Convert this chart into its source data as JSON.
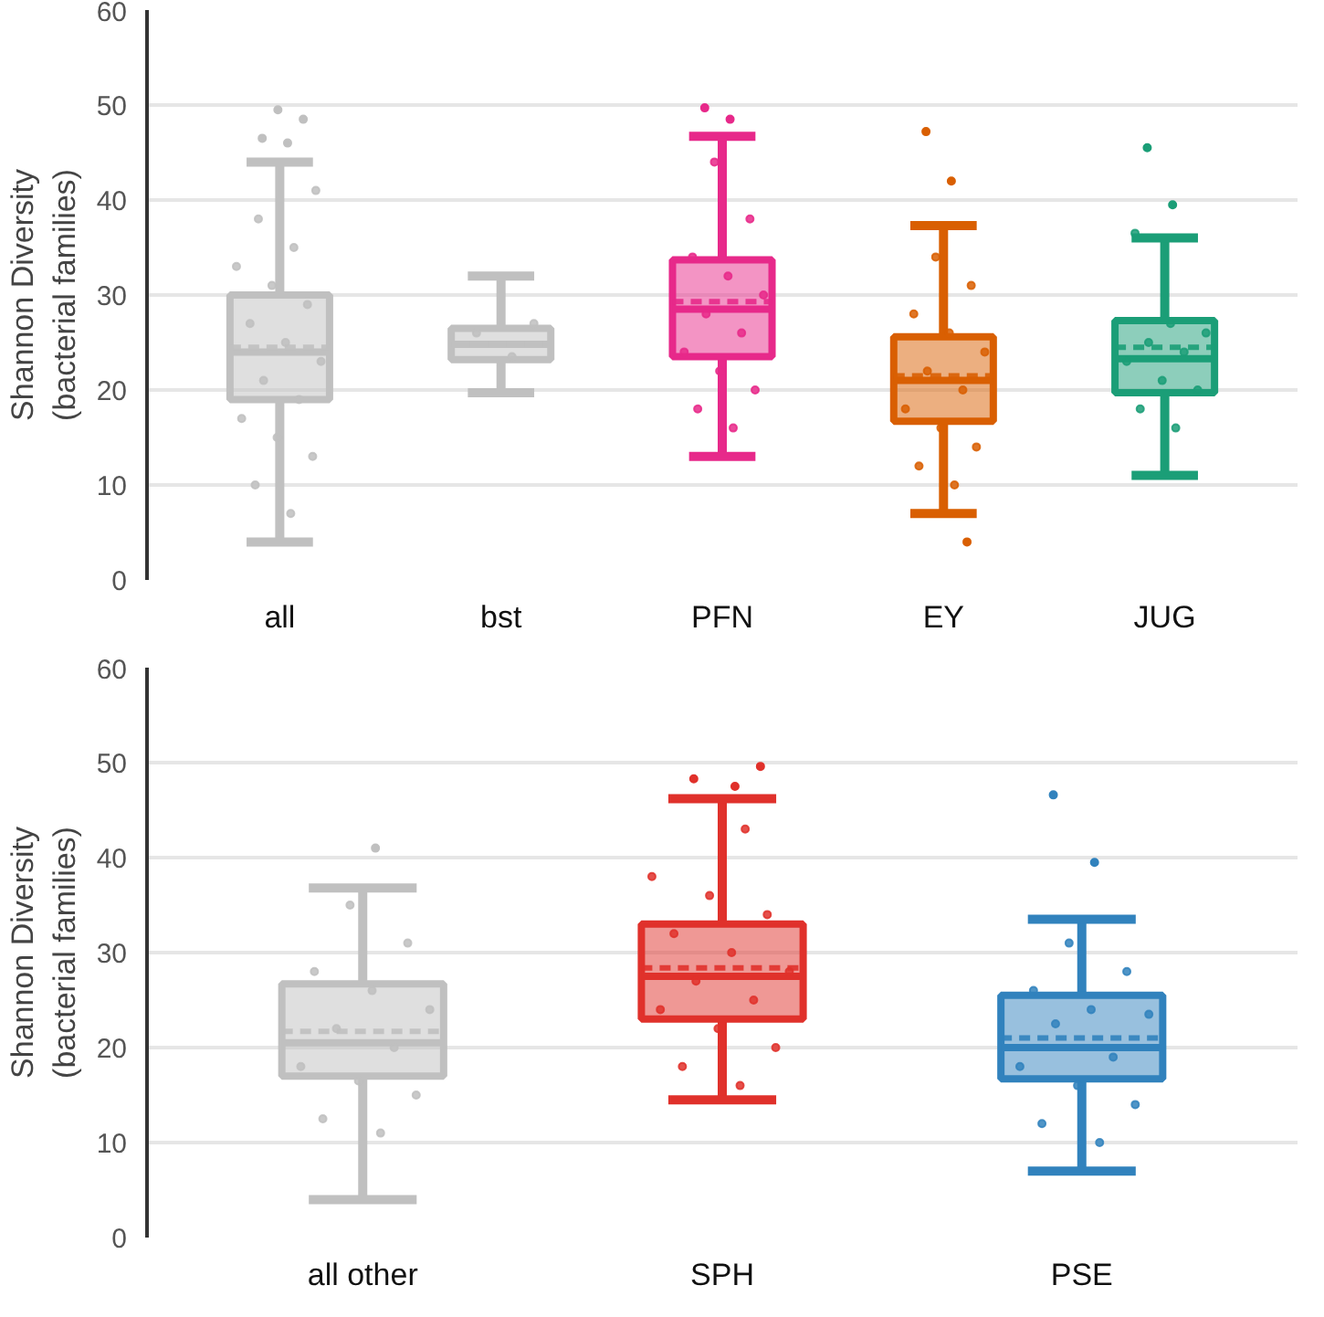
{
  "chart_data": [
    {
      "type": "box",
      "ylabel": "Shannon Diversity\n(bacterial families)",
      "categories": [
        "all",
        "bst",
        "PFN",
        "EY",
        "JUG"
      ],
      "ylim": [
        0,
        60
      ],
      "yticks": [
        0,
        10,
        20,
        30,
        40,
        50,
        60
      ],
      "grid": "y",
      "colors": [
        "#c0c0c0",
        "#c0c0c0",
        "#e7298a",
        "#d95f02",
        "#1b9e77"
      ],
      "boxes": [
        {
          "low": 4,
          "q1": 19,
          "median": 24,
          "q3": 30,
          "high": 44,
          "mean": 24.5,
          "outliers": [
            46,
            46.5,
            48.5,
            49.5
          ]
        },
        {
          "low": 19.7,
          "q1": 23.2,
          "median": 24.8,
          "q3": 26.5,
          "high": 32,
          "mean": 24.8
        },
        {
          "low": 13,
          "q1": 23.5,
          "median": 28.5,
          "q3": 33.7,
          "high": 46.7,
          "mean": 29.3,
          "outliers": [
            48.5,
            49.7
          ]
        },
        {
          "low": 7,
          "q1": 16.7,
          "median": 21,
          "q3": 25.6,
          "high": 37.3,
          "mean": 21.5,
          "outliers": [
            42,
            47.2,
            4
          ]
        },
        {
          "low": 11,
          "q1": 19.7,
          "median": 23.3,
          "q3": 27.3,
          "high": 36,
          "mean": 24.5,
          "outliers": [
            39.5,
            45.5
          ]
        }
      ],
      "series": [
        {
          "type": "scatter",
          "color": "#c0c0c0",
          "x": [
            "all",
            "all",
            "all",
            "all",
            "all",
            "all",
            "all",
            "all",
            "all",
            "all",
            "all",
            "all",
            "all",
            "all",
            "all",
            "all"
          ],
          "values": [
            7,
            10,
            13,
            15,
            17,
            19,
            21,
            23,
            25,
            27,
            29,
            31,
            33,
            35,
            38,
            41
          ]
        },
        {
          "type": "scatter",
          "color": "#c0c0c0",
          "x": [
            "bst",
            "bst",
            "bst"
          ],
          "values": [
            23.5,
            26,
            27
          ]
        },
        {
          "type": "scatter",
          "color": "#e7298a",
          "x": [
            "PFN",
            "PFN",
            "PFN",
            "PFN",
            "PFN",
            "PFN",
            "PFN",
            "PFN",
            "PFN",
            "PFN",
            "PFN",
            "PFN"
          ],
          "values": [
            16,
            18,
            20,
            22,
            24,
            26,
            28,
            30,
            32,
            34,
            38,
            44
          ]
        },
        {
          "type": "scatter",
          "color": "#d95f02",
          "x": [
            "EY",
            "EY",
            "EY",
            "EY",
            "EY",
            "EY",
            "EY",
            "EY",
            "EY",
            "EY",
            "EY",
            "EY"
          ],
          "values": [
            10,
            12,
            14,
            16,
            18,
            20,
            22,
            24,
            26,
            28,
            31,
            34
          ]
        },
        {
          "type": "scatter",
          "color": "#1b9e77",
          "x": [
            "JUG",
            "JUG",
            "JUG",
            "JUG",
            "JUG",
            "JUG",
            "JUG",
            "JUG",
            "JUG",
            "JUG"
          ],
          "values": [
            16,
            18,
            20,
            21,
            23,
            24,
            25,
            26,
            27,
            36.5
          ]
        }
      ]
    },
    {
      "type": "box",
      "ylabel": "Shannon Diversity\n(bacterial families)",
      "categories": [
        "all other",
        "SPH",
        "PSE"
      ],
      "ylim": [
        0,
        60
      ],
      "yticks": [
        0,
        10,
        20,
        30,
        40,
        50,
        60
      ],
      "grid": "y",
      "colors": [
        "#c0c0c0",
        "#e0312b",
        "#3182bd"
      ],
      "boxes": [
        {
          "low": 4,
          "q1": 17,
          "median": 20.5,
          "q3": 26.7,
          "high": 36.8,
          "mean": 21.7,
          "outliers": [
            41
          ]
        },
        {
          "low": 14.5,
          "q1": 23,
          "median": 27.5,
          "q3": 33,
          "high": 46.2,
          "mean": 28.4,
          "outliers": [
            47.5,
            48.3,
            49.6
          ]
        },
        {
          "low": 7,
          "q1": 16.7,
          "median": 20,
          "q3": 25.5,
          "high": 33.5,
          "mean": 21,
          "outliers": [
            39.5,
            46.6
          ]
        }
      ],
      "series": [
        {
          "type": "scatter",
          "color": "#c0c0c0",
          "x": [
            "all other",
            "all other",
            "all other",
            "all other",
            "all other",
            "all other",
            "all other",
            "all other",
            "all other",
            "all other",
            "all other",
            "all other"
          ],
          "values": [
            11,
            12.5,
            15,
            16.5,
            18,
            20,
            22,
            24,
            26,
            28,
            31,
            35
          ]
        },
        {
          "type": "scatter",
          "color": "#e0312b",
          "x": [
            "SPH",
            "SPH",
            "SPH",
            "SPH",
            "SPH",
            "SPH",
            "SPH",
            "SPH",
            "SPH",
            "SPH",
            "SPH",
            "SPH",
            "SPH",
            "SPH"
          ],
          "values": [
            16,
            18,
            20,
            22,
            24,
            25,
            27,
            28,
            30,
            32,
            34,
            36,
            38,
            43
          ]
        },
        {
          "type": "scatter",
          "color": "#3182bd",
          "x": [
            "PSE",
            "PSE",
            "PSE",
            "PSE",
            "PSE",
            "PSE",
            "PSE",
            "PSE",
            "PSE",
            "PSE",
            "PSE",
            "PSE"
          ],
          "values": [
            10,
            12,
            14,
            16,
            18,
            19,
            22.5,
            23.5,
            24,
            26,
            28,
            31
          ]
        }
      ]
    }
  ]
}
